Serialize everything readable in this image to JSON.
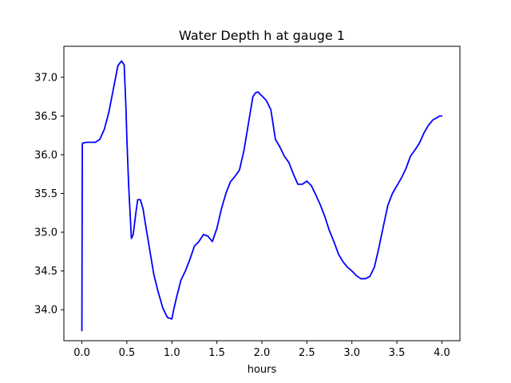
{
  "chart_data": {
    "type": "line",
    "title": "Water Depth h at gauge 1",
    "xlabel": "hours",
    "ylabel": "",
    "xlim": [
      -0.2,
      4.2
    ],
    "ylim": [
      33.6,
      37.4
    ],
    "xticks": [
      0.0,
      0.5,
      1.0,
      1.5,
      2.0,
      2.5,
      3.0,
      3.5,
      4.0
    ],
    "xtick_labels": [
      "0.0",
      "0.5",
      "1.0",
      "1.5",
      "2.0",
      "2.5",
      "3.0",
      "3.5",
      "4.0"
    ],
    "yticks": [
      34.0,
      34.5,
      35.0,
      35.5,
      36.0,
      36.5,
      37.0
    ],
    "ytick_labels": [
      "34.0",
      "34.5",
      "35.0",
      "35.5",
      "36.0",
      "36.5",
      "37.0"
    ],
    "grid": false,
    "legend": "none",
    "line_color": "#0000ff",
    "series": [
      {
        "x": [
          0.0,
          0.005,
          0.01,
          0.05,
          0.1,
          0.15,
          0.2,
          0.25,
          0.3,
          0.35,
          0.4,
          0.44,
          0.47,
          0.49,
          0.5,
          0.52,
          0.55,
          0.57,
          0.6,
          0.62,
          0.65,
          0.68,
          0.7,
          0.75,
          0.8,
          0.85,
          0.9,
          0.95,
          1.0,
          1.02,
          1.05,
          1.1,
          1.15,
          1.2,
          1.25,
          1.3,
          1.35,
          1.4,
          1.45,
          1.5,
          1.55,
          1.6,
          1.65,
          1.7,
          1.75,
          1.8,
          1.85,
          1.9,
          1.93,
          1.96,
          1.98,
          2.0,
          2.05,
          2.1,
          2.15,
          2.2,
          2.25,
          2.3,
          2.35,
          2.4,
          2.45,
          2.5,
          2.55,
          2.6,
          2.65,
          2.7,
          2.75,
          2.8,
          2.85,
          2.9,
          2.95,
          3.0,
          3.05,
          3.1,
          3.15,
          3.2,
          3.25,
          3.3,
          3.35,
          3.4,
          3.45,
          3.5,
          3.55,
          3.6,
          3.65,
          3.7,
          3.75,
          3.8,
          3.85,
          3.9,
          3.95,
          3.97,
          4.0
        ],
        "y": [
          33.73,
          36.14,
          36.15,
          36.16,
          36.16,
          36.16,
          36.2,
          36.33,
          36.55,
          36.85,
          37.15,
          37.21,
          37.16,
          36.6,
          36.2,
          35.6,
          34.92,
          34.97,
          35.25,
          35.42,
          35.42,
          35.3,
          35.15,
          34.8,
          34.45,
          34.22,
          34.02,
          33.9,
          33.88,
          34.0,
          34.15,
          34.38,
          34.5,
          34.65,
          34.82,
          34.88,
          34.97,
          34.95,
          34.88,
          35.05,
          35.3,
          35.5,
          35.65,
          35.72,
          35.8,
          36.05,
          36.4,
          36.75,
          36.8,
          36.81,
          36.78,
          36.76,
          36.7,
          36.58,
          36.2,
          36.1,
          35.98,
          35.9,
          35.75,
          35.62,
          35.62,
          35.66,
          35.6,
          35.48,
          35.35,
          35.2,
          35.02,
          34.88,
          34.72,
          34.62,
          34.55,
          34.5,
          34.44,
          34.4,
          34.4,
          34.43,
          34.55,
          34.8,
          35.08,
          35.35,
          35.5,
          35.6,
          35.7,
          35.82,
          35.98,
          36.06,
          36.15,
          36.28,
          36.38,
          36.45,
          36.48,
          36.5,
          36.5
        ]
      }
    ]
  }
}
